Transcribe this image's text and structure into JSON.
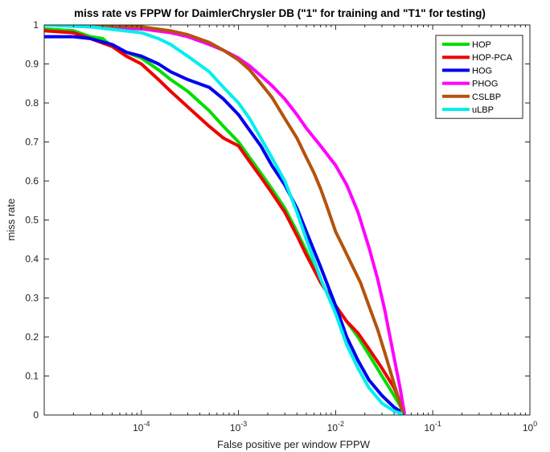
{
  "chart_data": {
    "type": "line",
    "title": "miss rate vs FPPW for DaimlerChrysler DB (\"1\" for training and \"T1\" for testing)",
    "xlabel": "False positive per window FPPW",
    "ylabel": "miss rate",
    "xscale": "log",
    "xlim": [
      1e-05,
      1
    ],
    "ylim": [
      0,
      1
    ],
    "x_ticks": [
      0.0001,
      0.001,
      0.01,
      0.1,
      1
    ],
    "x_tick_labels": [
      {
        "base": "10",
        "exp": "-4"
      },
      {
        "base": "10",
        "exp": "-3"
      },
      {
        "base": "10",
        "exp": "-2"
      },
      {
        "base": "10",
        "exp": "-1"
      },
      {
        "base": "10",
        "exp": "0"
      }
    ],
    "y_ticks": [
      0,
      0.1,
      0.2,
      0.3,
      0.4,
      0.5,
      0.6,
      0.7,
      0.8,
      0.9,
      1
    ],
    "y_tick_labels": [
      "0",
      "0.1",
      "0.2",
      "0.3",
      "0.4",
      "0.5",
      "0.6",
      "0.7",
      "0.8",
      "0.9",
      "1"
    ],
    "grid": false,
    "legend_position": "top-right",
    "series": [
      {
        "name": "HOP",
        "color": "#00dd00",
        "x": [
          1e-05,
          2e-05,
          3e-05,
          4e-05,
          5e-05,
          7e-05,
          0.0001,
          0.00015,
          0.0002,
          0.0003,
          0.0005,
          0.0007,
          0.001,
          0.0013,
          0.0017,
          0.0022,
          0.003,
          0.004,
          0.005,
          0.007,
          0.01,
          0.013,
          0.017,
          0.022,
          0.03,
          0.04,
          0.047,
          0.049
        ],
        "y": [
          0.99,
          0.985,
          0.97,
          0.965,
          0.945,
          0.93,
          0.915,
          0.885,
          0.86,
          0.83,
          0.78,
          0.74,
          0.7,
          0.66,
          0.62,
          0.58,
          0.53,
          0.47,
          0.42,
          0.34,
          0.28,
          0.24,
          0.2,
          0.155,
          0.1,
          0.05,
          0.02,
          0.005
        ]
      },
      {
        "name": "HOP-PCA",
        "color": "#ee0000",
        "x": [
          1e-05,
          2e-05,
          3e-05,
          5e-05,
          7e-05,
          0.0001,
          0.00015,
          0.0002,
          0.0003,
          0.0005,
          0.0007,
          0.001,
          0.0013,
          0.0017,
          0.0022,
          0.003,
          0.004,
          0.005,
          0.007,
          0.01,
          0.013,
          0.017,
          0.022,
          0.03,
          0.04,
          0.047,
          0.049
        ],
        "y": [
          0.985,
          0.98,
          0.965,
          0.945,
          0.92,
          0.9,
          0.86,
          0.83,
          0.79,
          0.74,
          0.71,
          0.69,
          0.65,
          0.61,
          0.57,
          0.52,
          0.46,
          0.41,
          0.34,
          0.28,
          0.24,
          0.21,
          0.17,
          0.12,
          0.07,
          0.03,
          0.005
        ]
      },
      {
        "name": "HOG",
        "color": "#0000ee",
        "x": [
          1e-05,
          2e-05,
          3e-05,
          5e-05,
          7e-05,
          0.0001,
          0.00015,
          0.0002,
          0.0003,
          0.0005,
          0.0007,
          0.001,
          0.0013,
          0.0017,
          0.0022,
          0.003,
          0.004,
          0.005,
          0.007,
          0.01,
          0.013,
          0.017,
          0.022,
          0.03,
          0.04,
          0.047,
          0.049
        ],
        "y": [
          0.97,
          0.97,
          0.965,
          0.95,
          0.93,
          0.92,
          0.9,
          0.88,
          0.86,
          0.84,
          0.81,
          0.77,
          0.73,
          0.69,
          0.64,
          0.59,
          0.53,
          0.47,
          0.38,
          0.28,
          0.2,
          0.14,
          0.09,
          0.05,
          0.02,
          0.008,
          0.003
        ]
      },
      {
        "name": "PHOG",
        "color": "#ff00ff",
        "x": [
          1e-05,
          3e-05,
          0.0001,
          0.0002,
          0.0003,
          0.0005,
          0.0007,
          0.001,
          0.0013,
          0.0017,
          0.0022,
          0.003,
          0.004,
          0.005,
          0.007,
          0.01,
          0.013,
          0.017,
          0.022,
          0.027,
          0.032,
          0.037,
          0.042,
          0.046,
          0.049,
          0.051
        ],
        "y": [
          1.0,
          0.995,
          0.99,
          0.98,
          0.97,
          0.95,
          0.935,
          0.915,
          0.895,
          0.87,
          0.845,
          0.81,
          0.77,
          0.735,
          0.69,
          0.64,
          0.59,
          0.52,
          0.43,
          0.35,
          0.27,
          0.19,
          0.12,
          0.07,
          0.03,
          0.005
        ]
      },
      {
        "name": "CSLBP",
        "color": "#b5520c",
        "x": [
          1e-05,
          3e-05,
          0.0001,
          0.0002,
          0.0003,
          0.0005,
          0.0007,
          0.001,
          0.0013,
          0.0017,
          0.0022,
          0.003,
          0.004,
          0.005,
          0.006,
          0.007,
          0.008,
          0.01,
          0.012,
          0.015,
          0.018,
          0.022,
          0.027,
          0.033,
          0.04,
          0.046,
          0.049
        ],
        "y": [
          1.0,
          1.0,
          0.995,
          0.985,
          0.975,
          0.955,
          0.935,
          0.91,
          0.885,
          0.85,
          0.815,
          0.76,
          0.71,
          0.66,
          0.62,
          0.58,
          0.54,
          0.47,
          0.43,
          0.38,
          0.34,
          0.28,
          0.22,
          0.15,
          0.08,
          0.03,
          0.005
        ]
      },
      {
        "name": "uLBP",
        "color": "#00eeee",
        "x": [
          1e-05,
          3e-05,
          0.0001,
          0.00015,
          0.0002,
          0.0003,
          0.0005,
          0.0007,
          0.001,
          0.0013,
          0.0017,
          0.0022,
          0.003,
          0.004,
          0.005,
          0.007,
          0.01,
          0.013,
          0.017,
          0.022,
          0.03,
          0.04,
          0.047,
          0.049
        ],
        "y": [
          1.0,
          0.995,
          0.98,
          0.965,
          0.95,
          0.92,
          0.88,
          0.84,
          0.8,
          0.76,
          0.71,
          0.66,
          0.6,
          0.52,
          0.45,
          0.35,
          0.26,
          0.18,
          0.12,
          0.07,
          0.03,
          0.01,
          0.004,
          0.001
        ]
      }
    ]
  }
}
